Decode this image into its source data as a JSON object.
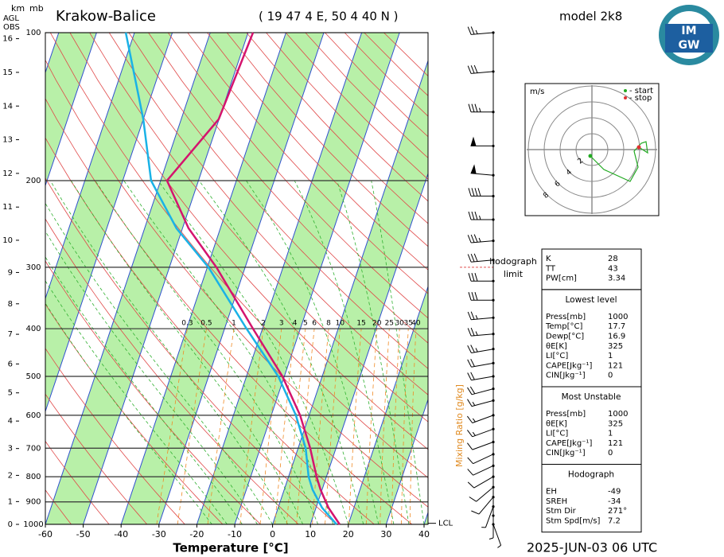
{
  "header": {
    "km": "km",
    "mb": "mb",
    "agl": "AGL",
    "obs": "OBS",
    "station": "Krakow-Balice",
    "coords": "( 19 47 4 E, 50 4 40 N )",
    "model": "model 2k8",
    "logo_top": "IM",
    "logo_bottom": "GW",
    "date": "2025-JUN-03   06 UTC"
  },
  "chart_data": {
    "type": "skewt",
    "x_label": "Temperature [°C]",
    "xlim": [
      -60,
      40
    ],
    "xticks": [
      -60,
      -50,
      -40,
      -30,
      -20,
      -10,
      0,
      10,
      20,
      30,
      40
    ],
    "ylim": [
      1000,
      100
    ],
    "yticks": [
      100,
      200,
      300,
      400,
      500,
      600,
      700,
      800,
      900,
      1000
    ],
    "log_y": true,
    "height_ticks_km": [
      0,
      1,
      2,
      3,
      4,
      5,
      6,
      7,
      8,
      9,
      10,
      11,
      12,
      13,
      14,
      15,
      16
    ],
    "mixing_ratio_label": "Mixing Ratio [g/kg]",
    "mixing_ratios": [
      0.3,
      0.5,
      1,
      2,
      3,
      4,
      5,
      6,
      8,
      10,
      15,
      20,
      25,
      30,
      35,
      40
    ],
    "pressure": [
      1000,
      925,
      850,
      800,
      700,
      600,
      500,
      400,
      300,
      250,
      200,
      150,
      100
    ],
    "series": [
      {
        "color": "#d4146e",
        "values": [
          17.7,
          13.3,
          9.6,
          7.4,
          3.2,
          -2.4,
          -10.5,
          -22.5,
          -37.6,
          -48.4,
          -58.3,
          -50.1,
          -48.7
        ]
      },
      {
        "color": "#1ab2e6",
        "values": [
          16.9,
          11.6,
          7.5,
          5.3,
          2.0,
          -3.5,
          -11.6,
          -24.2,
          -39.7,
          -51.6,
          -62.5,
          -70.0,
          -82.3
        ]
      }
    ],
    "wind_pressure": [
      100,
      120,
      145,
      170,
      195,
      215,
      240,
      265,
      290,
      320,
      350,
      380,
      410,
      440,
      470,
      500,
      530,
      560,
      600,
      640,
      680,
      720,
      760,
      800,
      840,
      880,
      920,
      960,
      1000
    ],
    "wind_direction": [
      265,
      265,
      270,
      270,
      275,
      270,
      270,
      265,
      265,
      270,
      270,
      265,
      265,
      260,
      260,
      260,
      255,
      255,
      250,
      250,
      250,
      245,
      245,
      240,
      230,
      220,
      200,
      180,
      160
    ],
    "wind_speed": [
      25,
      30,
      35,
      50,
      50,
      40,
      35,
      35,
      30,
      30,
      30,
      25,
      25,
      25,
      20,
      20,
      20,
      15,
      15,
      15,
      10,
      10,
      10,
      10,
      10,
      10,
      5,
      5,
      5
    ],
    "lcl": {
      "label": "LCL",
      "pressure": 995
    },
    "hodograph_limit": {
      "label_lines": [
        "hodograph",
        "limit"
      ],
      "pressure": 300
    }
  },
  "hodograph": {
    "unit": "m/s",
    "start_label": "- start",
    "stop_label": "- stop",
    "start_color": "#22aa22",
    "stop_color": "#e03030",
    "rings": [
      2,
      4,
      6,
      8
    ],
    "u": [
      -0.2,
      1.5,
      4.8,
      5.8,
      5.3,
      6.2,
      6.8,
      7.0,
      5.9
    ],
    "v": [
      -0.8,
      -2.5,
      -4.0,
      -2.2,
      -0.2,
      0.8,
      1.0,
      -0.4,
      0.3
    ]
  },
  "indices": {
    "sections": [
      {
        "rows": [
          [
            "K",
            "28"
          ],
          [
            "TT",
            "43"
          ],
          [
            "PW[cm]",
            "3.34"
          ]
        ]
      },
      {
        "title": "Lowest level",
        "rows": [
          [
            "Press[mb]",
            "1000"
          ],
          [
            "Temp[°C]",
            "17.7"
          ],
          [
            "Dewp[°C]",
            "16.9"
          ],
          [
            "θE[K]",
            "325"
          ],
          [
            "LI[°C]",
            "1"
          ],
          [
            "CAPE[Jkg⁻¹]",
            "121"
          ],
          [
            "CIN[Jkg⁻¹]",
            "0"
          ]
        ]
      },
      {
        "title": "Most Unstable",
        "rows": [
          [
            "Press[mb]",
            "1000"
          ],
          [
            "θE[K]",
            "325"
          ],
          [
            "LI[°C]",
            "1"
          ],
          [
            "CAPE[Jkg⁻¹]",
            "121"
          ],
          [
            "CIN[Jkg⁻¹]",
            "0"
          ]
        ]
      },
      {
        "title": "Hodograph",
        "rows": [
          [
            "EH",
            "-49"
          ],
          [
            "SREH",
            "-34"
          ],
          [
            "Stm Dir",
            "271°"
          ],
          [
            "Stm Spd[m/s]",
            "7.2"
          ]
        ]
      }
    ]
  }
}
